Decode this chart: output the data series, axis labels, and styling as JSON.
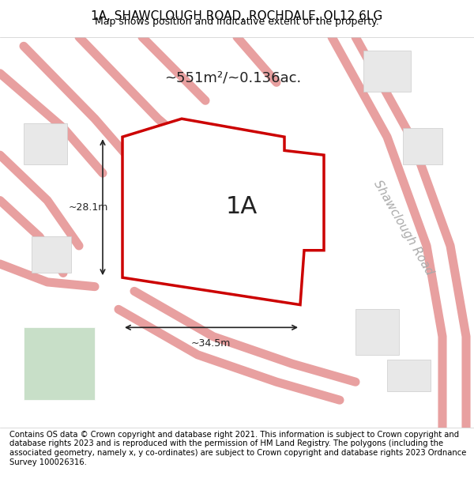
{
  "title": "1A, SHAWCLOUGH ROAD, ROCHDALE, OL12 6LG",
  "subtitle": "Map shows position and indicative extent of the property.",
  "area_label": "~551m²/~0.136ac.",
  "property_label": "1A",
  "dim_width": "~34.5m",
  "dim_height": "~28.1m",
  "road_label": "Shawclough Road",
  "footer": "Contains OS data © Crown copyright and database right 2021. This information is subject to Crown copyright and database rights 2023 and is reproduced with the permission of HM Land Registry. The polygons (including the associated geometry, namely x, y co-ordinates) are subject to Crown copyright and database rights 2023 Ordnance Survey 100026316.",
  "bg_color": "#f5f4f2",
  "map_bg": "#f5f4f2",
  "road_color": "#e8a0a0",
  "road_fill": "#f5f4f2",
  "property_color": "#cc0000",
  "property_fill": "#f5f4f2",
  "green_fill": "#c8dfc8",
  "dim_color": "#222222",
  "title_fontsize": 11,
  "subtitle_fontsize": 9,
  "area_fontsize": 13,
  "property_label_fontsize": 22,
  "road_label_fontsize": 11,
  "footer_fontsize": 7.2
}
